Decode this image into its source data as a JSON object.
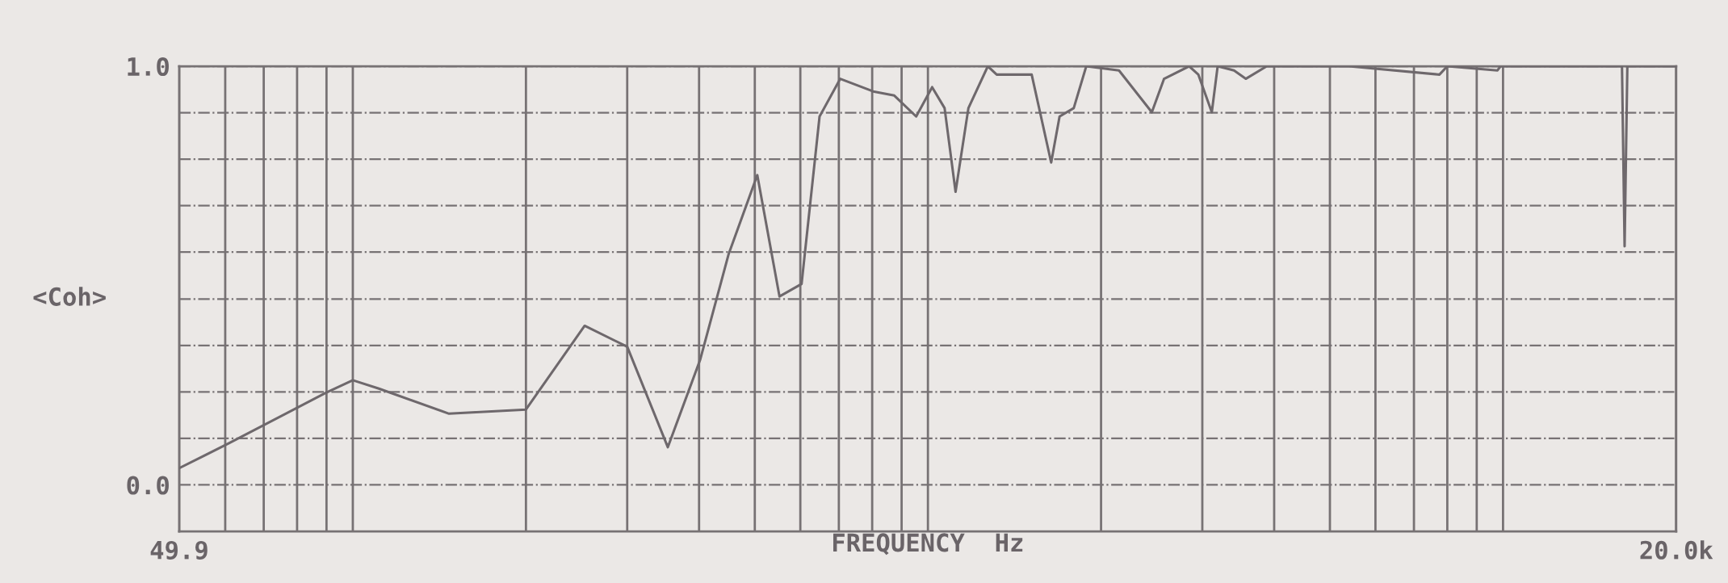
{
  "chart_data": {
    "type": "line",
    "xlabel": "FREQUENCY  Hz",
    "ylabel": "<Coh>",
    "log": "x",
    "xlim": [
      49.9,
      20000
    ],
    "ylim": [
      -0.111,
      1.0
    ],
    "xticks": [
      {
        "value": 49.9,
        "label": "49.9"
      },
      {
        "value": 60,
        "label": null
      },
      {
        "value": 70,
        "label": null
      },
      {
        "value": 80,
        "label": null
      },
      {
        "value": 90,
        "label": null
      },
      {
        "value": 100,
        "label": null
      },
      {
        "value": 200,
        "label": null
      },
      {
        "value": 300,
        "label": null
      },
      {
        "value": 400,
        "label": null
      },
      {
        "value": 500,
        "label": null
      },
      {
        "value": 600,
        "label": null
      },
      {
        "value": 700,
        "label": null
      },
      {
        "value": 800,
        "label": null
      },
      {
        "value": 900,
        "label": null
      },
      {
        "value": 1000,
        "label": null
      },
      {
        "value": 2000,
        "label": null
      },
      {
        "value": 3000,
        "label": null
      },
      {
        "value": 4000,
        "label": null
      },
      {
        "value": 5000,
        "label": null
      },
      {
        "value": 6000,
        "label": null
      },
      {
        "value": 7000,
        "label": null
      },
      {
        "value": 8000,
        "label": null
      },
      {
        "value": 9000,
        "label": null
      },
      {
        "value": 10000,
        "label": null
      },
      {
        "value": 20000,
        "label": "20.0k"
      }
    ],
    "yticks": [
      {
        "value": 0,
        "label": "0.0"
      },
      {
        "value": 0.111,
        "label": null
      },
      {
        "value": 0.222,
        "label": null
      },
      {
        "value": 0.333,
        "label": null
      },
      {
        "value": 0.444,
        "label": null
      },
      {
        "value": 0.556,
        "label": null
      },
      {
        "value": 0.667,
        "label": null
      },
      {
        "value": 0.778,
        "label": null
      },
      {
        "value": 0.889,
        "label": null
      },
      {
        "value": 1.0,
        "label": "1.0"
      }
    ],
    "grid": true,
    "line_style": "solid",
    "marker": "none",
    "series": [
      {
        "color": "#6e686c",
        "x": [
          49.9,
          61,
          89.8,
          100,
          111,
          147,
          200,
          253,
          300,
          353,
          402,
          450,
          505,
          552,
          603,
          648,
          704,
          803,
          874,
          954,
          1017,
          1069,
          1117,
          1176,
          1271,
          1317,
          1515,
          1638,
          1694,
          1793,
          1885,
          2149,
          2451,
          2574,
          2846,
          2953,
          3116,
          3190,
          3406,
          3570,
          3883,
          5397,
          7753,
          8000,
          9780,
          9900,
          16100,
          16270,
          16450,
          20000
        ],
        "values": [
          0.04,
          0.1,
          0.22,
          0.25,
          0.23,
          0.17,
          0.18,
          0.38,
          0.33,
          0.09,
          0.3,
          0.55,
          0.74,
          0.45,
          0.48,
          0.88,
          0.97,
          0.94,
          0.93,
          0.88,
          0.95,
          0.9,
          0.7,
          0.9,
          1.0,
          0.98,
          0.98,
          0.77,
          0.88,
          0.9,
          1.0,
          0.99,
          0.89,
          0.97,
          1.0,
          0.98,
          0.89,
          1.0,
          0.99,
          0.97,
          1.0,
          1.0,
          0.98,
          1.0,
          0.99,
          1.0,
          1.0,
          0.57,
          1.0,
          1.0
        ]
      }
    ]
  }
}
